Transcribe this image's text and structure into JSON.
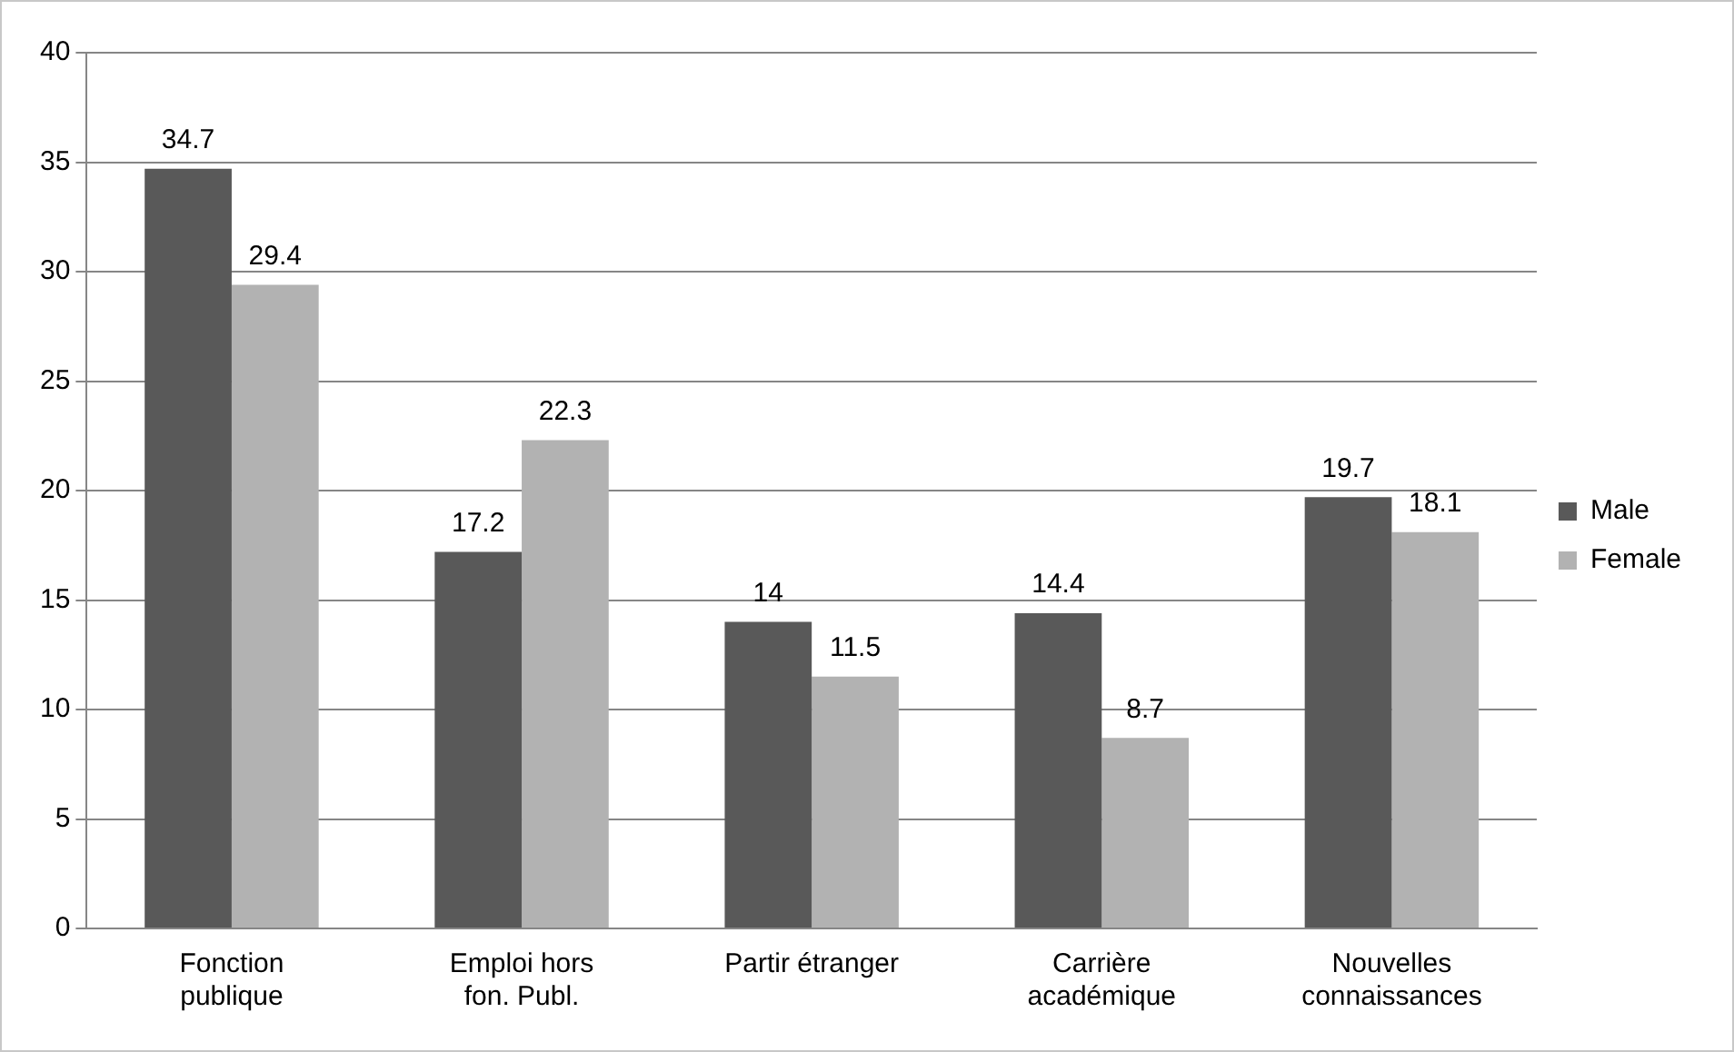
{
  "chart_data": {
    "type": "bar",
    "categories": [
      "Fonction publique",
      "Emploi hors fon. Publ.",
      "Partir étranger",
      "Carrière académique",
      "Nouvelles connaissances"
    ],
    "series": [
      {
        "name": "Male",
        "color": "#595959",
        "values": [
          34.7,
          17.2,
          14,
          14.4,
          19.7
        ]
      },
      {
        "name": "Female",
        "color": "#b2b2b2",
        "values": [
          29.4,
          22.3,
          11.5,
          8.7,
          18.1
        ]
      }
    ],
    "ylim": [
      0,
      40
    ],
    "yticks": [
      0,
      5,
      10,
      15,
      20,
      25,
      30,
      35,
      40
    ],
    "grid": "y",
    "legend": "right",
    "data_labels": true
  }
}
